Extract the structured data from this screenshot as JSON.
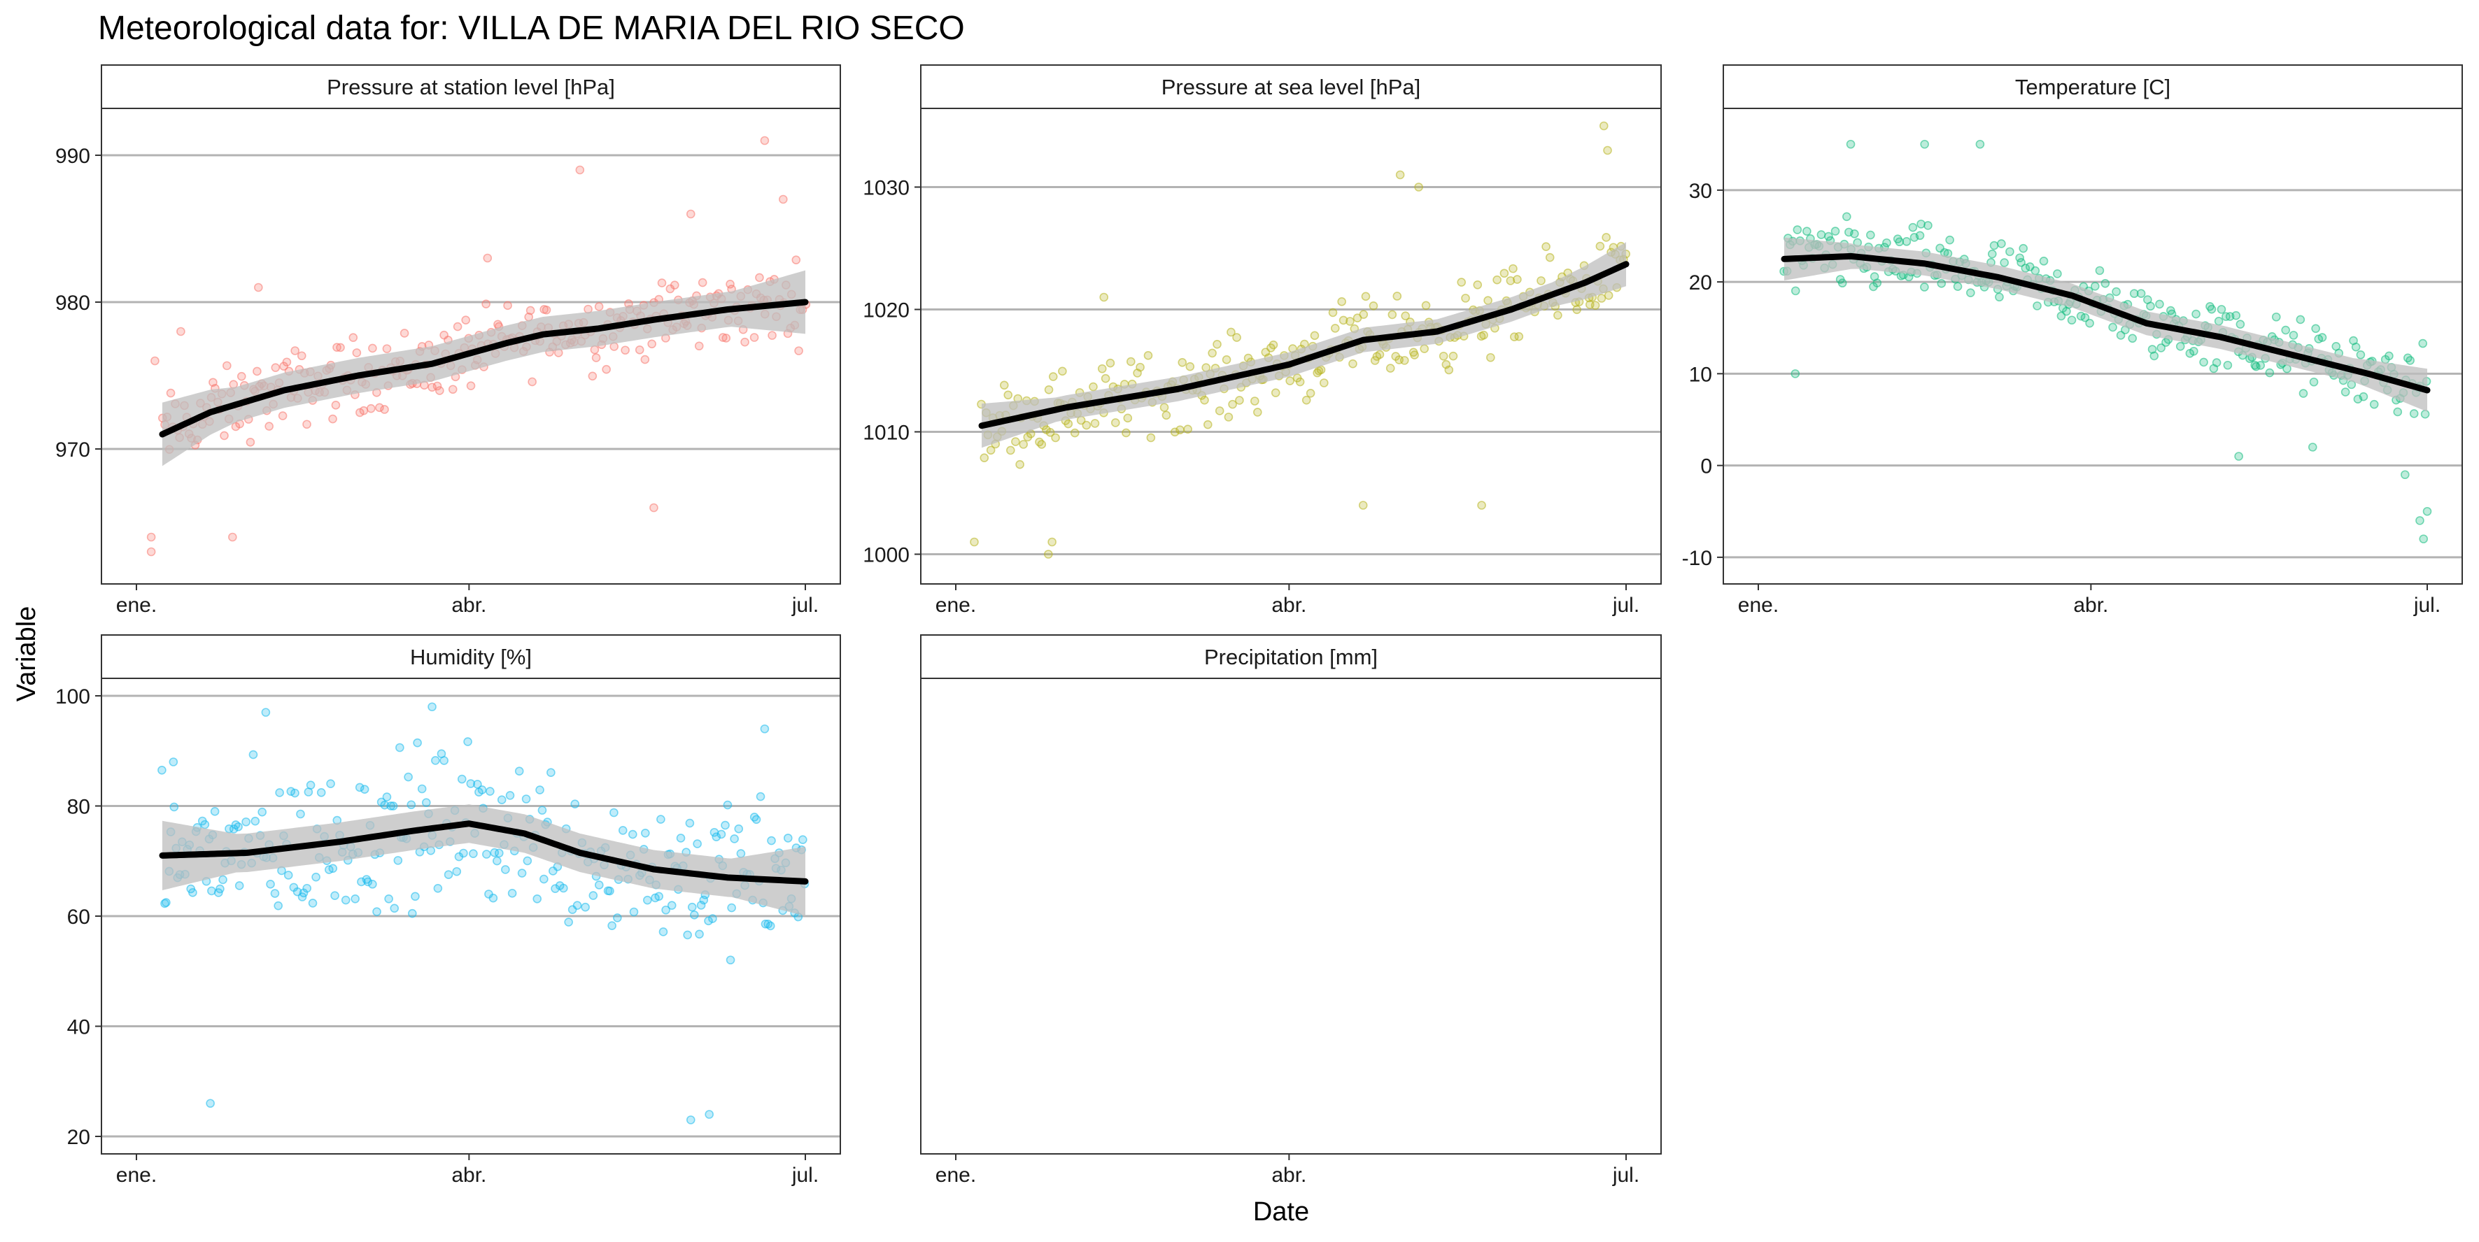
{
  "title": "Meteorological data for: VILLA DE MARIA DEL RIO SECO",
  "xlabel": "Date",
  "ylabel": "Variable",
  "colors": {
    "station_pressure": "#F8766D",
    "sea_pressure": "#B7B31E",
    "temperature": "#12BC7E",
    "humidity": "#18B9EC",
    "smooth_line": "#000000",
    "ribbon": "#BDBDBD",
    "strip_fill": "#FFFFFF",
    "grid": "#B3B3B3"
  },
  "chart_data": [
    {
      "type": "scatter",
      "panel": "Pressure at station level [hPa]",
      "color": "#F8766D",
      "xlim": [
        0,
        181
      ],
      "ylim": [
        962,
        992
      ],
      "x_ticks": [
        {
          "label": "ene.",
          "day": 0
        },
        {
          "label": "abr.",
          "day": 90
        },
        {
          "label": "jul.",
          "day": 181
        }
      ],
      "y_ticks": [
        970,
        980,
        990
      ],
      "spread": 4,
      "extremes": [
        [
          4,
          963
        ],
        [
          4,
          964
        ],
        [
          26,
          964
        ],
        [
          170,
          991
        ],
        [
          95,
          983
        ],
        [
          120,
          989
        ],
        [
          140,
          966
        ],
        [
          5,
          976
        ],
        [
          12,
          978
        ],
        [
          150,
          986
        ],
        [
          175,
          987
        ],
        [
          33,
          981
        ]
      ],
      "trend": [
        [
          7,
          971
        ],
        [
          20,
          972.5
        ],
        [
          40,
          974
        ],
        [
          60,
          975
        ],
        [
          80,
          975.8
        ],
        [
          100,
          977.2
        ],
        [
          110,
          977.8
        ],
        [
          125,
          978.2
        ],
        [
          140,
          978.8
        ],
        [
          160,
          979.5
        ],
        [
          181,
          980
        ]
      ],
      "ribbon_half": 1.2
    },
    {
      "type": "scatter",
      "panel": "Pressure at sea level [hPa]",
      "color": "#B7B31E",
      "xlim": [
        0,
        181
      ],
      "ylim": [
        999,
        1035
      ],
      "x_ticks": [
        {
          "label": "ene.",
          "day": 0
        },
        {
          "label": "abr.",
          "day": 90
        },
        {
          "label": "jul.",
          "day": 181
        }
      ],
      "y_ticks": [
        1000,
        1010,
        1020,
        1030
      ],
      "spread": 5,
      "extremes": [
        [
          5,
          1001
        ],
        [
          25,
          1000
        ],
        [
          26,
          1001
        ],
        [
          175,
          1035
        ],
        [
          176,
          1033
        ],
        [
          120,
          1031
        ],
        [
          125,
          1030
        ],
        [
          142,
          1004
        ],
        [
          110,
          1004
        ],
        [
          40,
          1021
        ]
      ],
      "trend": [
        [
          7,
          1010.5
        ],
        [
          30,
          1012
        ],
        [
          60,
          1013.5
        ],
        [
          90,
          1015.5
        ],
        [
          110,
          1017.5
        ],
        [
          130,
          1018.2
        ],
        [
          150,
          1020
        ],
        [
          170,
          1022.2
        ],
        [
          181,
          1023.7
        ]
      ],
      "ribbon_half": 1.0
    },
    {
      "type": "scatter",
      "panel": "Temperature [C]",
      "color": "#12BC7E",
      "xlim": [
        0,
        181
      ],
      "ylim": [
        -11,
        37
      ],
      "x_ticks": [
        {
          "label": "ene.",
          "day": 0
        },
        {
          "label": "abr.",
          "day": 90
        },
        {
          "label": "jul.",
          "day": 181
        }
      ],
      "y_ticks": [
        -10,
        0,
        10,
        20,
        30
      ],
      "spread": 6,
      "extremes": [
        [
          180,
          -8
        ],
        [
          179,
          -6
        ],
        [
          181,
          -5
        ],
        [
          175,
          -1
        ],
        [
          25,
          35
        ],
        [
          45,
          35
        ],
        [
          60,
          35
        ],
        [
          150,
          2
        ],
        [
          130,
          1
        ],
        [
          10,
          10
        ]
      ],
      "trend": [
        [
          7,
          22.5
        ],
        [
          25,
          22.8
        ],
        [
          45,
          22
        ],
        [
          65,
          20.5
        ],
        [
          85,
          18.5
        ],
        [
          105,
          15.5
        ],
        [
          125,
          14
        ],
        [
          145,
          12
        ],
        [
          165,
          10
        ],
        [
          181,
          8.2
        ]
      ],
      "ribbon_half": 1.3
    },
    {
      "type": "scatter",
      "panel": "Humidity [%]",
      "color": "#18B9EC",
      "xlim": [
        0,
        181
      ],
      "ylim": [
        20,
        100
      ],
      "x_ticks": [
        {
          "label": "ene.",
          "day": 0
        },
        {
          "label": "abr.",
          "day": 90
        },
        {
          "label": "jul.",
          "day": 181
        }
      ],
      "y_ticks": [
        20,
        40,
        60,
        80,
        100
      ],
      "spread": 22,
      "extremes": [
        [
          20,
          26
        ],
        [
          150,
          23
        ],
        [
          155,
          24
        ],
        [
          35,
          97
        ],
        [
          80,
          98
        ],
        [
          170,
          94
        ],
        [
          10,
          88
        ]
      ],
      "trend": [
        [
          7,
          71
        ],
        [
          30,
          71.5
        ],
        [
          55,
          73.5
        ],
        [
          75,
          75.5
        ],
        [
          90,
          76.8
        ],
        [
          105,
          75
        ],
        [
          120,
          71.5
        ],
        [
          140,
          68.5
        ],
        [
          160,
          67
        ],
        [
          181,
          66.3
        ]
      ],
      "ribbon_half": 3.5
    },
    {
      "type": "scatter",
      "panel": "Precipitation [mm]",
      "color": "#999999",
      "xlim": [
        0,
        181
      ],
      "ylim": [
        0,
        1
      ],
      "x_ticks": [
        {
          "label": "ene.",
          "day": 0
        },
        {
          "label": "abr.",
          "day": 90
        },
        {
          "label": "jul.",
          "day": 181
        }
      ],
      "y_ticks": [],
      "spread": 0,
      "extremes": [],
      "trend": [],
      "ribbon_half": 0
    }
  ]
}
